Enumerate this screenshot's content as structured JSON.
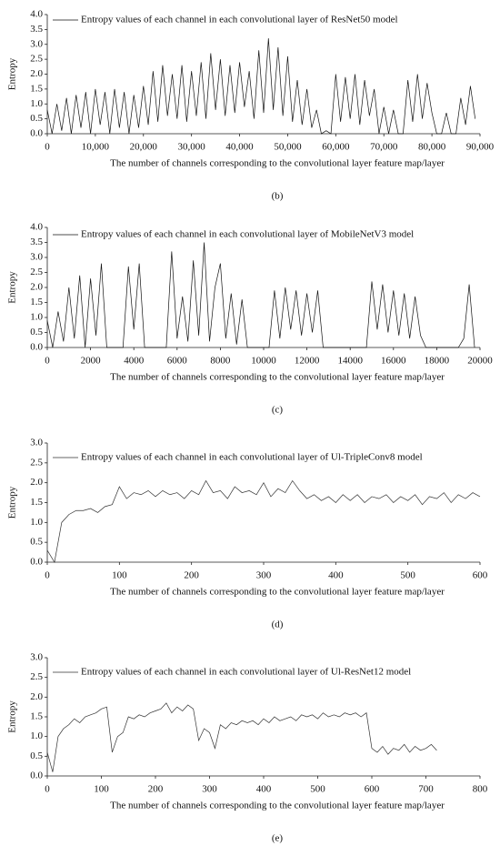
{
  "chart_data": [
    {
      "type": "line",
      "caption": "(b)",
      "ylabel": "Entropy",
      "xlabel": "The number of channels corresponding to the convolutional layer feature map/layer",
      "legend": "upper left",
      "x": [
        0,
        1000,
        2000,
        3000,
        4000,
        5000,
        6000,
        7000,
        8000,
        9000,
        10000,
        11000,
        12000,
        13000,
        14000,
        15000,
        16000,
        17000,
        18000,
        19000,
        20000,
        21000,
        22000,
        23000,
        24000,
        25000,
        26000,
        27000,
        28000,
        29000,
        30000,
        31000,
        32000,
        33000,
        34000,
        35000,
        36000,
        37000,
        38000,
        39000,
        40000,
        41000,
        42000,
        43000,
        44000,
        45000,
        46000,
        47000,
        48000,
        49000,
        50000,
        51000,
        52000,
        53000,
        54000,
        55000,
        56000,
        57000,
        58000,
        59000,
        60000,
        61000,
        62000,
        63000,
        64000,
        65000,
        66000,
        67000,
        68000,
        69000,
        70000,
        71000,
        72000,
        73000,
        74000,
        75000,
        76000,
        77000,
        78000,
        79000,
        80000,
        81000,
        82000,
        83000,
        84000,
        85000,
        86000,
        87000,
        88000,
        89000
      ],
      "series": [
        {
          "name": "Entropy values of each channel in each convolutional layer of ResNet50 model",
          "color": "#111111",
          "values": [
            0.8,
            0,
            1.0,
            0.1,
            1.2,
            0,
            1.3,
            0.2,
            1.4,
            0,
            1.5,
            0.3,
            1.4,
            0,
            1.5,
            0.2,
            1.4,
            0,
            1.3,
            0.2,
            1.6,
            0.3,
            2.1,
            0.4,
            2.3,
            0.6,
            2.0,
            0.5,
            2.3,
            0.4,
            2.1,
            0.6,
            2.4,
            0.5,
            2.7,
            0.8,
            2.5,
            0.6,
            2.3,
            0.7,
            2.4,
            0.9,
            2.1,
            0.5,
            2.8,
            0.7,
            3.2,
            0.8,
            2.9,
            0.6,
            2.6,
            0.4,
            1.8,
            0.3,
            1.5,
            0.2,
            0.8,
            0,
            0.1,
            0,
            2.0,
            0.4,
            1.9,
            0.5,
            2.0,
            0.3,
            1.8,
            0.6,
            1.5,
            0,
            0.9,
            0,
            0.8,
            0,
            0,
            1.8,
            0.4,
            2.0,
            0.5,
            1.7,
            0.7,
            0,
            0,
            0.7,
            0,
            0,
            1.2,
            0.3,
            1.6,
            0.5
          ]
        }
      ],
      "xlim": [
        0,
        90000
      ],
      "ylim": [
        0,
        4
      ],
      "xticks": [
        0,
        {
          "value": 10000,
          "label": "10,000"
        },
        {
          "value": 20000,
          "label": "20,000"
        },
        {
          "value": 30000,
          "label": "30,000"
        },
        {
          "value": 40000,
          "label": "40,000"
        },
        {
          "value": 50000,
          "label": "50,000"
        },
        {
          "value": 60000,
          "label": "60,000"
        },
        {
          "value": 70000,
          "label": "70,000"
        },
        {
          "value": 80000,
          "label": "80,000"
        },
        {
          "value": 90000,
          "label": "90,000"
        }
      ],
      "yticks": [
        {
          "value": 0,
          "label": "0.0"
        },
        0.5,
        {
          "value": 1,
          "label": "1.0"
        },
        1.5,
        {
          "value": 2,
          "label": "2.0"
        },
        2.5,
        {
          "value": 3,
          "label": "3.0"
        },
        3.5,
        {
          "value": 4,
          "label": "4.0"
        }
      ]
    },
    {
      "type": "line",
      "caption": "(c)",
      "ylabel": "Entropy",
      "xlabel": "The number of channels corresponding to the convolutional layer feature map/layer",
      "legend": "upper left",
      "x": [
        0,
        250,
        500,
        750,
        1000,
        1250,
        1500,
        1750,
        2000,
        2250,
        2500,
        2750,
        3000,
        3250,
        3500,
        3750,
        4000,
        4250,
        4500,
        4750,
        5000,
        5250,
        5500,
        5750,
        6000,
        6250,
        6500,
        6750,
        7000,
        7250,
        7500,
        7750,
        8000,
        8250,
        8500,
        8750,
        9000,
        9250,
        9500,
        9750,
        10000,
        10250,
        10500,
        10750,
        11000,
        11250,
        11500,
        11750,
        12000,
        12250,
        12500,
        12750,
        13000,
        13250,
        13500,
        13750,
        14000,
        14250,
        14500,
        14750,
        15000,
        15250,
        15500,
        15750,
        16000,
        16250,
        16500,
        16750,
        17000,
        17250,
        17500,
        17750,
        18000,
        18250,
        18500,
        18750,
        19000,
        19250,
        19500,
        19750
      ],
      "series": [
        {
          "name": "Entropy values of each channel in each convolutional layer of MobileNetV3 model",
          "color": "#111111",
          "values": [
            0.9,
            0,
            1.2,
            0.2,
            2.0,
            0.3,
            2.4,
            0,
            2.3,
            0.4,
            2.8,
            0,
            0,
            0,
            0,
            2.7,
            0.6,
            2.8,
            0,
            0,
            0,
            0,
            0,
            3.2,
            0.3,
            1.7,
            0.2,
            2.9,
            0.4,
            3.5,
            0.2,
            2.0,
            2.8,
            0.3,
            1.8,
            0.1,
            1.6,
            0,
            0,
            0,
            0,
            0,
            1.9,
            0.3,
            2.0,
            0.6,
            1.9,
            0.4,
            1.8,
            0.5,
            1.9,
            0,
            0,
            0,
            0,
            0,
            0,
            0,
            0,
            0,
            2.2,
            0.6,
            2.1,
            0.5,
            1.9,
            0.4,
            1.8,
            0.3,
            1.7,
            0.4,
            0,
            0,
            0,
            0,
            0,
            0,
            0,
            0.3,
            2.1,
            0
          ]
        }
      ],
      "xlim": [
        0,
        20000
      ],
      "ylim": [
        0,
        4
      ],
      "xticks": [
        0,
        2000,
        4000,
        6000,
        8000,
        10000,
        12000,
        14000,
        16000,
        18000,
        20000
      ],
      "yticks": [
        {
          "value": 0,
          "label": "0.0"
        },
        0.5,
        {
          "value": 1,
          "label": "1.0"
        },
        1.5,
        {
          "value": 2,
          "label": "2.0"
        },
        2.5,
        {
          "value": 3,
          "label": "3.0"
        },
        3.5,
        {
          "value": 4,
          "label": "4.0"
        }
      ]
    },
    {
      "type": "line",
      "caption": "(d)",
      "ylabel": "Entropy",
      "xlabel": "The number of channels corresponding to the convolutional layer feature map/layer",
      "legend": "upper left",
      "x": [
        0,
        10,
        20,
        30,
        40,
        50,
        60,
        70,
        80,
        90,
        100,
        110,
        120,
        130,
        140,
        150,
        160,
        170,
        180,
        190,
        200,
        210,
        220,
        230,
        240,
        250,
        260,
        270,
        280,
        290,
        300,
        310,
        320,
        330,
        340,
        350,
        360,
        370,
        380,
        390,
        400,
        410,
        420,
        430,
        440,
        450,
        460,
        470,
        480,
        490,
        500,
        510,
        520,
        530,
        540,
        550,
        560,
        570,
        580,
        590,
        600
      ],
      "series": [
        {
          "name": "Entropy values of each channel in each convolutional layer of Ul-TripleConv8 model",
          "color": "#333333",
          "values": [
            0.3,
            0,
            1.0,
            1.2,
            1.3,
            1.3,
            1.35,
            1.25,
            1.4,
            1.45,
            1.9,
            1.6,
            1.75,
            1.7,
            1.8,
            1.65,
            1.8,
            1.7,
            1.75,
            1.6,
            1.8,
            1.7,
            2.05,
            1.75,
            1.8,
            1.6,
            1.9,
            1.75,
            1.8,
            1.7,
            2.0,
            1.65,
            1.85,
            1.75,
            2.05,
            1.8,
            1.6,
            1.7,
            1.55,
            1.65,
            1.5,
            1.7,
            1.55,
            1.7,
            1.5,
            1.65,
            1.6,
            1.7,
            1.5,
            1.65,
            1.55,
            1.7,
            1.45,
            1.65,
            1.6,
            1.75,
            1.5,
            1.7,
            1.6,
            1.75,
            1.65
          ]
        }
      ],
      "xlim": [
        0,
        600
      ],
      "ylim": [
        0,
        3
      ],
      "xticks": [
        0,
        100,
        200,
        300,
        400,
        500,
        600
      ],
      "yticks": [
        {
          "value": 0,
          "label": "0.0"
        },
        0.5,
        {
          "value": 1,
          "label": "1.0"
        },
        1.5,
        {
          "value": 2,
          "label": "2.0"
        },
        2.5,
        {
          "value": 3,
          "label": "3.0"
        }
      ]
    },
    {
      "type": "line",
      "caption": "(e)",
      "ylabel": "Entropy",
      "xlabel": "The number of channels corresponding to the convolutional layer feature map/layer",
      "legend": "upper left",
      "x": [
        0,
        10,
        20,
        30,
        40,
        50,
        60,
        70,
        80,
        90,
        100,
        110,
        120,
        130,
        140,
        150,
        160,
        170,
        180,
        190,
        200,
        210,
        220,
        230,
        240,
        250,
        260,
        270,
        280,
        290,
        300,
        310,
        320,
        330,
        340,
        350,
        360,
        370,
        380,
        390,
        400,
        410,
        420,
        430,
        440,
        450,
        460,
        470,
        480,
        490,
        500,
        510,
        520,
        530,
        540,
        550,
        560,
        570,
        580,
        590,
        600,
        610,
        620,
        630,
        640,
        650,
        660,
        670,
        680,
        690,
        700,
        710,
        720
      ],
      "series": [
        {
          "name": "Entropy values of each channel in each convolutional layer of Ul-ResNet12 model",
          "color": "#333333",
          "values": [
            0.6,
            0.1,
            1.0,
            1.2,
            1.3,
            1.45,
            1.35,
            1.5,
            1.55,
            1.6,
            1.7,
            1.75,
            0.6,
            1.0,
            1.1,
            1.5,
            1.45,
            1.55,
            1.5,
            1.6,
            1.65,
            1.7,
            1.85,
            1.6,
            1.75,
            1.65,
            1.8,
            1.7,
            0.9,
            1.2,
            1.1,
            0.7,
            1.3,
            1.2,
            1.35,
            1.3,
            1.4,
            1.35,
            1.4,
            1.3,
            1.45,
            1.35,
            1.5,
            1.4,
            1.45,
            1.5,
            1.4,
            1.55,
            1.5,
            1.55,
            1.45,
            1.6,
            1.5,
            1.55,
            1.5,
            1.6,
            1.55,
            1.6,
            1.5,
            1.6,
            0.7,
            0.6,
            0.75,
            0.55,
            0.7,
            0.65,
            0.8,
            0.6,
            0.75,
            0.65,
            0.7,
            0.8,
            0.65
          ]
        }
      ],
      "xlim": [
        0,
        800
      ],
      "ylim": [
        0,
        3
      ],
      "xticks": [
        0,
        100,
        200,
        300,
        400,
        500,
        600,
        700,
        800
      ],
      "yticks": [
        {
          "value": 0,
          "label": "0.0"
        },
        0.5,
        {
          "value": 1,
          "label": "1.0"
        },
        1.5,
        {
          "value": 2,
          "label": "2.0"
        },
        2.5,
        {
          "value": 3,
          "label": "3.0"
        }
      ]
    }
  ]
}
